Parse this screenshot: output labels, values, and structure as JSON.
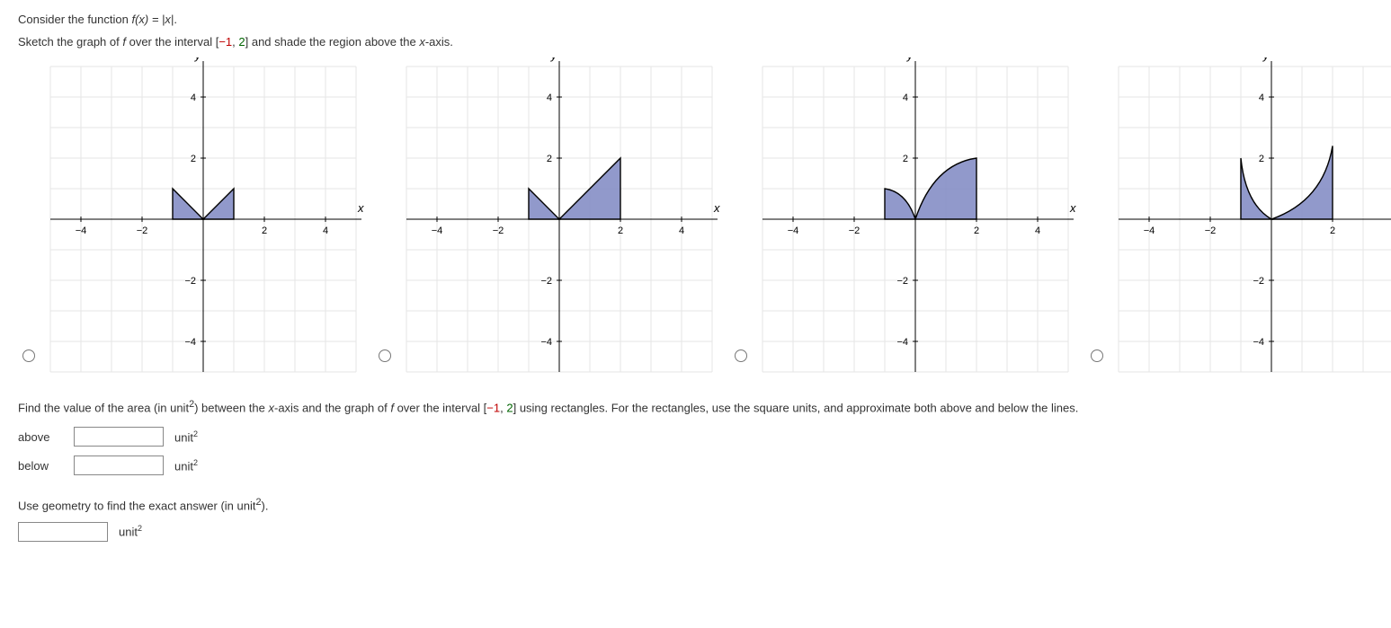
{
  "intro1_prefix": "Consider the function ",
  "intro1_fn": "f(x) = |x|",
  "intro1_suffix": ".",
  "intro2_a": "Sketch the graph of ",
  "intro2_f": "f",
  "intro2_b": " over the interval [",
  "intro2_neg": "−1",
  "intro2_c": ", ",
  "intro2_pos": "2",
  "intro2_d": "] and shade the region above the ",
  "intro2_x": "x",
  "intro2_e": "-axis.",
  "part2_a": "Find the value of the area (in unit",
  "part2_b": ") between the ",
  "part2_c": "-axis and the graph of ",
  "part2_d": " over the interval [",
  "part2_e": "] using rectangles. For the rectangles, use the square units, and approximate both above and below the lines.",
  "label_above": "above",
  "label_below": "below",
  "unit_text": "unit",
  "sup2": "2",
  "part3_a": "Use geometry to find the exact answer (in unit",
  "part3_b": ").",
  "axis": {
    "xmin": -5,
    "xmax": 5,
    "ymin": -5,
    "ymax": 5,
    "xticks": [
      -4,
      -2,
      2,
      4
    ],
    "yticks": [
      -4,
      -2,
      2,
      4
    ],
    "xtick_labels": [
      "−4",
      "−2",
      "2",
      "4"
    ],
    "ytick_labels": [
      "−4",
      "−2",
      "2",
      "4"
    ],
    "grid_color": "#e6e6e6",
    "axis_color": "#000000",
    "xlabel": "x",
    "ylabel": "y",
    "label_fontstyle": "italic",
    "tick_fontsize": 11
  },
  "plot_colors": {
    "fill": "#7e87c2",
    "fill_opacity": 0.85,
    "stroke": "#000000",
    "stroke_width": 1.4
  },
  "options": [
    {
      "id": "opt-a",
      "interval": [
        -1,
        1
      ],
      "shape": "V",
      "curve": false
    },
    {
      "id": "opt-b",
      "interval": [
        -1,
        2
      ],
      "shape": "V",
      "curve": false
    },
    {
      "id": "opt-c",
      "interval": [
        -1,
        2
      ],
      "shape": "V",
      "curve": true
    },
    {
      "id": "opt-d",
      "interval": [
        -1,
        2
      ],
      "shape": "sqrt",
      "curve": true
    }
  ]
}
